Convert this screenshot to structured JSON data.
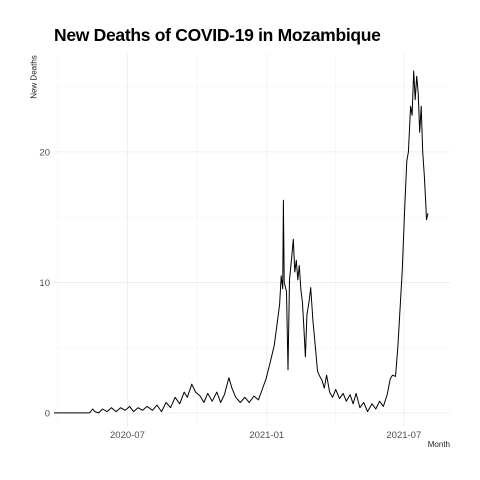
{
  "chart_data": {
    "type": "line",
    "title": "New Deaths of COVID-19 in Mozambique",
    "xlabel": "Month",
    "ylabel": "New Deaths",
    "x_ticks": [
      "2020-07",
      "2021-01",
      "2021-07"
    ],
    "y_ticks": [
      0,
      10,
      20
    ],
    "xlim": [
      "2020-03-26",
      "2021-08-31"
    ],
    "ylim": [
      -1.0,
      27.5
    ],
    "grid": true,
    "series": [
      {
        "color": "#000000",
        "points": [
          [
            "2020-03-26",
            0
          ],
          [
            "2020-05-12",
            0
          ],
          [
            "2020-05-16",
            0.3
          ],
          [
            "2020-05-19",
            0.1
          ],
          [
            "2020-05-24",
            0
          ],
          [
            "2020-05-29",
            0.3
          ],
          [
            "2020-06-04",
            0.1
          ],
          [
            "2020-06-10",
            0.4
          ],
          [
            "2020-06-16",
            0.1
          ],
          [
            "2020-06-22",
            0.4
          ],
          [
            "2020-06-28",
            0.2
          ],
          [
            "2020-07-04",
            0.5
          ],
          [
            "2020-07-09",
            0.1
          ],
          [
            "2020-07-15",
            0.4
          ],
          [
            "2020-07-21",
            0.2
          ],
          [
            "2020-07-27",
            0.5
          ],
          [
            "2020-08-03",
            0.2
          ],
          [
            "2020-08-09",
            0.6
          ],
          [
            "2020-08-15",
            0.1
          ],
          [
            "2020-08-21",
            0.8
          ],
          [
            "2020-08-27",
            0.4
          ],
          [
            "2020-09-02",
            1.2
          ],
          [
            "2020-09-08",
            0.7
          ],
          [
            "2020-09-14",
            1.6
          ],
          [
            "2020-09-18",
            1.2
          ],
          [
            "2020-09-24",
            2.2
          ],
          [
            "2020-09-29",
            1.6
          ],
          [
            "2020-10-05",
            1.3
          ],
          [
            "2020-10-10",
            0.8
          ],
          [
            "2020-10-15",
            1.5
          ],
          [
            "2020-10-21",
            0.9
          ],
          [
            "2020-10-27",
            1.6
          ],
          [
            "2020-11-01",
            0.8
          ],
          [
            "2020-11-06",
            1.4
          ],
          [
            "2020-11-12",
            2.7
          ],
          [
            "2020-11-16",
            1.9
          ],
          [
            "2020-11-21",
            1.2
          ],
          [
            "2020-11-27",
            0.8
          ],
          [
            "2020-12-03",
            1.2
          ],
          [
            "2020-12-09",
            0.8
          ],
          [
            "2020-12-15",
            1.3
          ],
          [
            "2020-12-21",
            1.0
          ],
          [
            "2020-12-26",
            1.8
          ],
          [
            "2020-12-31",
            2.6
          ],
          [
            "2021-01-06",
            4.0
          ],
          [
            "2021-01-11",
            5.2
          ],
          [
            "2021-01-15",
            7.0
          ],
          [
            "2021-01-18",
            8.3
          ],
          [
            "2021-01-20",
            10.5
          ],
          [
            "2021-01-22",
            9.5
          ],
          [
            "2021-01-23",
            16.3
          ],
          [
            "2021-01-24",
            10.0
          ],
          [
            "2021-01-27",
            9.3
          ],
          [
            "2021-01-29",
            3.3
          ],
          [
            "2021-01-31",
            10.2
          ],
          [
            "2021-02-03",
            12.0
          ],
          [
            "2021-02-05",
            13.3
          ],
          [
            "2021-02-07",
            10.8
          ],
          [
            "2021-02-09",
            11.7
          ],
          [
            "2021-02-11",
            10.2
          ],
          [
            "2021-02-13",
            11.3
          ],
          [
            "2021-02-15",
            9.5
          ],
          [
            "2021-02-17",
            8.5
          ],
          [
            "2021-02-19",
            6.5
          ],
          [
            "2021-02-21",
            4.3
          ],
          [
            "2021-02-23",
            7.5
          ],
          [
            "2021-02-26",
            8.6
          ],
          [
            "2021-02-28",
            9.6
          ],
          [
            "2021-03-03",
            7.0
          ],
          [
            "2021-03-06",
            5.2
          ],
          [
            "2021-03-09",
            3.2
          ],
          [
            "2021-03-12",
            2.8
          ],
          [
            "2021-03-15",
            2.5
          ],
          [
            "2021-03-18",
            1.9
          ],
          [
            "2021-03-21",
            2.9
          ],
          [
            "2021-03-25",
            1.6
          ],
          [
            "2021-03-29",
            1.2
          ],
          [
            "2021-04-02",
            1.8
          ],
          [
            "2021-04-07",
            1.1
          ],
          [
            "2021-04-12",
            1.5
          ],
          [
            "2021-04-16",
            0.9
          ],
          [
            "2021-04-21",
            1.4
          ],
          [
            "2021-04-25",
            0.7
          ],
          [
            "2021-04-29",
            1.5
          ],
          [
            "2021-05-04",
            0.4
          ],
          [
            "2021-05-09",
            0.8
          ],
          [
            "2021-05-14",
            0.1
          ],
          [
            "2021-05-20",
            0.7
          ],
          [
            "2021-05-25",
            0.3
          ],
          [
            "2021-05-30",
            0.9
          ],
          [
            "2021-06-04",
            0.5
          ],
          [
            "2021-06-09",
            1.4
          ],
          [
            "2021-06-13",
            2.6
          ],
          [
            "2021-06-16",
            2.9
          ],
          [
            "2021-06-20",
            2.8
          ],
          [
            "2021-06-23",
            5.0
          ],
          [
            "2021-06-26",
            7.9
          ],
          [
            "2021-06-29",
            11.0
          ],
          [
            "2021-07-02",
            15.5
          ],
          [
            "2021-07-05",
            19.3
          ],
          [
            "2021-07-07",
            20.0
          ],
          [
            "2021-07-10",
            23.5
          ],
          [
            "2021-07-12",
            22.8
          ],
          [
            "2021-07-14",
            26.2
          ],
          [
            "2021-07-16",
            24.0
          ],
          [
            "2021-07-18",
            25.8
          ],
          [
            "2021-07-20",
            24.5
          ],
          [
            "2021-07-22",
            21.5
          ],
          [
            "2021-07-24",
            23.5
          ],
          [
            "2021-07-26",
            20.0
          ],
          [
            "2021-07-28",
            18.2
          ],
          [
            "2021-07-30",
            16.0
          ],
          [
            "2021-07-31",
            14.8
          ],
          [
            "2021-08-02",
            15.3
          ]
        ]
      }
    ]
  }
}
